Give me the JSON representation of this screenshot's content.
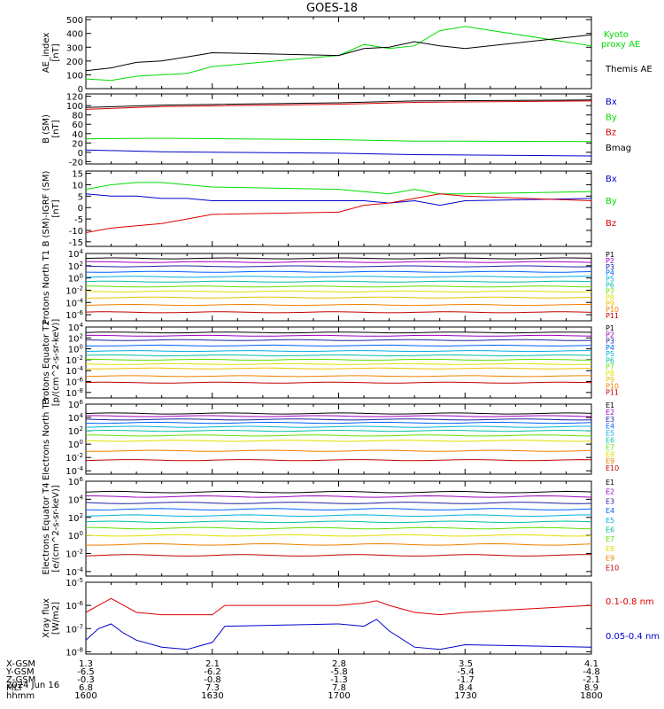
{
  "title": "GOES-18",
  "date_label": "2024 Jun 16",
  "bottom_axis": {
    "ticks": [
      "1600",
      "1630",
      "1700",
      "1730",
      "1800"
    ],
    "rows": [
      {
        "label": "X-GSM",
        "values": [
          "1.3",
          "2.1",
          "2.8",
          "3.5",
          "4.1"
        ]
      },
      {
        "label": "Y-GSM",
        "values": [
          "-6.5",
          "-6.2",
          "-5.8",
          "-5.4",
          "-4.8"
        ]
      },
      {
        "label": "Z-GSM",
        "values": [
          "-0.3",
          "-0.8",
          "-1.3",
          "-1.7",
          "-2.1"
        ]
      },
      {
        "label": "MLT",
        "values": [
          "6.8",
          "7.3",
          "7.8",
          "8.4",
          "8.9"
        ]
      },
      {
        "label": "hhmm",
        "values": [
          "1600",
          "1630",
          "1700",
          "1730",
          "1800"
        ]
      }
    ]
  },
  "colors": {
    "black": "#000000",
    "green": "#00dd00",
    "blue": "#0000cc",
    "red": "#dd0000",
    "purple": "#a000c0",
    "navy": "#2020a0",
    "blue2": "#0060ff",
    "cyan": "#00b0e0",
    "teal": "#00c0a0",
    "lime": "#60e000",
    "yellow": "#e0e000",
    "gold": "#f0c000",
    "orange": "#f08000",
    "darkred": "#c00000"
  },
  "chart_data": [
    {
      "type": "line",
      "ylabel": "AE_index [nT]",
      "yticks": [
        "500",
        "400",
        "300",
        "200",
        "100",
        "0"
      ],
      "ylim": [
        0,
        520
      ],
      "x": [
        1600,
        1610,
        1620,
        1630,
        1640,
        1650,
        1700,
        1710,
        1720,
        1730,
        1740,
        1750,
        1800
      ],
      "series": [
        {
          "name": "Kyoto proxy AE",
          "color": "green",
          "values": [
            70,
            60,
            90,
            100,
            110,
            160,
            240,
            320,
            290,
            310,
            420,
            450,
            310
          ]
        },
        {
          "name": "Themis AE",
          "color": "black",
          "values": [
            130,
            150,
            190,
            200,
            230,
            260,
            240,
            290,
            300,
            340,
            310,
            290,
            390
          ]
        }
      ],
      "legend": [
        "Kyoto",
        "proxy AE",
        "Themis AE"
      ]
    },
    {
      "type": "line",
      "ylabel": "B (SM) [nT]",
      "yticks": [
        "120",
        "100",
        "80",
        "60",
        "40",
        "20",
        "0",
        "-20"
      ],
      "ylim": [
        -25,
        125
      ],
      "x": [
        1600,
        1630,
        1700,
        1730,
        1800
      ],
      "series": [
        {
          "name": "Bx",
          "color": "blue",
          "values": [
            5,
            1,
            -2,
            -5,
            -8
          ]
        },
        {
          "name": "By",
          "color": "green",
          "values": [
            29,
            30,
            27,
            24,
            23
          ]
        },
        {
          "name": "Bz",
          "color": "red",
          "values": [
            92,
            98,
            103,
            107,
            110
          ]
        },
        {
          "name": "Bmag",
          "color": "black",
          "values": [
            96,
            101,
            106,
            110,
            112
          ]
        }
      ],
      "legend": [
        "Bx",
        "By",
        "Bz",
        "Bmag"
      ]
    },
    {
      "type": "line",
      "ylabel": "B (SM)-IGRF (SM) [nT]",
      "yticks": [
        "15",
        "10",
        "5",
        "0",
        "-5",
        "-10",
        "-15"
      ],
      "ylim": [
        -17,
        16
      ],
      "x": [
        1600,
        1610,
        1620,
        1630,
        1640,
        1650,
        1700,
        1710,
        1720,
        1730,
        1740,
        1750,
        1800
      ],
      "series": [
        {
          "name": "Bx",
          "color": "blue",
          "values": [
            6,
            5,
            5,
            4,
            4,
            3,
            3,
            3,
            2,
            3,
            1,
            3,
            4
          ]
        },
        {
          "name": "By",
          "color": "green",
          "values": [
            8,
            10,
            11,
            11,
            10,
            9,
            8,
            7,
            6,
            8,
            6,
            6,
            7
          ]
        },
        {
          "name": "Bz",
          "color": "red",
          "values": [
            -11,
            -9,
            -8,
            -7,
            -5,
            -3,
            -2,
            1,
            2,
            4,
            6,
            5,
            3
          ]
        }
      ],
      "legend": [
        "Bx",
        "By",
        "Bz"
      ]
    },
    {
      "type": "line",
      "ylabel": "Protons North T1",
      "yticks": [
        "10^4",
        "10^2",
        "10^0",
        "10^-2",
        "10^-4",
        "10^-6"
      ],
      "log": true,
      "ylim_exp": [
        -7,
        4
      ],
      "series_exp": [
        {
          "name": "P1",
          "color": "black",
          "value": 3.2
        },
        {
          "name": "P2",
          "color": "purple",
          "value": 2.6
        },
        {
          "name": "P3",
          "color": "navy",
          "value": 1.9
        },
        {
          "name": "P4",
          "color": "blue2",
          "value": 1.0
        },
        {
          "name": "P5",
          "color": "cyan",
          "value": 0.2
        },
        {
          "name": "P6",
          "color": "teal",
          "value": -0.6
        },
        {
          "name": "P7",
          "color": "lime",
          "value": -1.4
        },
        {
          "name": "P8",
          "color": "yellow",
          "value": -2.2
        },
        {
          "name": "P9",
          "color": "gold",
          "value": -3.2
        },
        {
          "name": "P10",
          "color": "orange",
          "value": -4.4
        },
        {
          "name": "P11",
          "color": "darkred",
          "value": -5.6
        }
      ],
      "legend": [
        "P1",
        "P2",
        "P3",
        "P4",
        "P5",
        "P6",
        "P7",
        "P8",
        "P9",
        "P10",
        "P11"
      ]
    },
    {
      "type": "line",
      "ylabel": "Protons Equator T2 [p/(cm^2-s-sr-keV)]",
      "yticks": [
        "10^4",
        "10^2",
        "10^0",
        "10^-2",
        "10^-4",
        "10^-6",
        "10^-8"
      ],
      "log": true,
      "ylim_exp": [
        -9,
        4
      ],
      "series_exp": [
        {
          "name": "P1",
          "color": "black",
          "value": 3.0
        },
        {
          "name": "P2",
          "color": "purple",
          "value": 2.4
        },
        {
          "name": "P3",
          "color": "navy",
          "value": 1.6
        },
        {
          "name": "P4",
          "color": "blue2",
          "value": 0.6
        },
        {
          "name": "P5",
          "color": "cyan",
          "value": -0.4
        },
        {
          "name": "P6",
          "color": "teal",
          "value": -1.2
        },
        {
          "name": "P7",
          "color": "lime",
          "value": -2.0
        },
        {
          "name": "P8",
          "color": "yellow",
          "value": -2.8
        },
        {
          "name": "P9",
          "color": "gold",
          "value": -3.6
        },
        {
          "name": "P10",
          "color": "orange",
          "value": -5.0
        },
        {
          "name": "P11",
          "color": "darkred",
          "value": -6.2
        }
      ],
      "legend": [
        "P1",
        "P2",
        "P3",
        "P4",
        "P5",
        "P6",
        "P7",
        "P8",
        "P9",
        "P10",
        "P11"
      ]
    },
    {
      "type": "line",
      "ylabel": "Electrons North T3",
      "yticks": [
        "10^6",
        "10^4",
        "10^2",
        "10^0",
        "10^-2",
        "10^-4"
      ],
      "log": true,
      "ylim_exp": [
        -4.5,
        6
      ],
      "series_exp": [
        {
          "name": "E1",
          "color": "black",
          "value": 4.6
        },
        {
          "name": "E2",
          "color": "purple",
          "value": 4.2
        },
        {
          "name": "E3",
          "color": "navy",
          "value": 3.7
        },
        {
          "name": "E4",
          "color": "blue2",
          "value": 3.2
        },
        {
          "name": "E5",
          "color": "cyan",
          "value": 2.6
        },
        {
          "name": "E6",
          "color": "teal",
          "value": 2.0
        },
        {
          "name": "E7",
          "color": "lime",
          "value": 1.3
        },
        {
          "name": "E8",
          "color": "yellow",
          "value": 0.5
        },
        {
          "name": "E9",
          "color": "orange",
          "value": -1.0
        },
        {
          "name": "E10",
          "color": "darkred",
          "value": -2.4
        }
      ],
      "legend": [
        "E1",
        "E2",
        "E3",
        "E4",
        "E5",
        "E6",
        "E7",
        "E8",
        "E9",
        "E10"
      ]
    },
    {
      "type": "line",
      "ylabel": "Electrons Equator T4 [e/(cm^2-s-sr-keV)]",
      "yticks": [
        "10^6",
        "10^4",
        "10^2",
        "10^0",
        "10^-2",
        "10^-4"
      ],
      "log": true,
      "ylim_exp": [
        -4.5,
        6
      ],
      "series_exp": [
        {
          "name": "E1",
          "color": "black",
          "value": 4.8
        },
        {
          "name": "E2",
          "color": "purple",
          "value": 4.3
        },
        {
          "name": "E3",
          "color": "navy",
          "value": 3.6
        },
        {
          "name": "E4",
          "color": "blue2",
          "value": 2.9
        },
        {
          "name": "E5",
          "color": "cyan",
          "value": 2.2
        },
        {
          "name": "E6",
          "color": "teal",
          "value": 1.5
        },
        {
          "name": "E7",
          "color": "lime",
          "value": 0.8
        },
        {
          "name": "E8",
          "color": "yellow",
          "value": 0.0
        },
        {
          "name": "E9",
          "color": "orange",
          "value": -1.0
        },
        {
          "name": "E10",
          "color": "darkred",
          "value": -2.2
        }
      ],
      "legend": [
        "E1",
        "E2",
        "E3",
        "E4",
        "E5",
        "E6",
        "E7",
        "E8",
        "E9",
        "E10"
      ]
    },
    {
      "type": "line",
      "ylabel": "Xray flux [W/m2]",
      "yticks": [
        "10^-5",
        "10^-6",
        "10^-7",
        "10^-8"
      ],
      "log": true,
      "ylim_exp": [
        -8.1,
        -5
      ],
      "x": [
        1600,
        1605,
        1610,
        1615,
        1620,
        1630,
        1640,
        1650,
        1655,
        1700,
        1710,
        1715,
        1720,
        1730,
        1740,
        1750,
        1800
      ],
      "series": [
        {
          "name": "0.1-0.8 nm",
          "color": "red",
          "values": [
            -6.3,
            -6.0,
            -5.7,
            -6.0,
            -6.3,
            -6.4,
            -6.4,
            -6.4,
            -6.0,
            -6.0,
            -5.9,
            -5.8,
            -6.0,
            -6.3,
            -6.4,
            -6.3,
            -6.0
          ]
        },
        {
          "name": "0.05-0.4 nm",
          "color": "blue",
          "values": [
            -7.5,
            -7.0,
            -6.8,
            -7.2,
            -7.5,
            -7.8,
            -7.9,
            -7.6,
            -6.9,
            -6.8,
            -6.9,
            -6.6,
            -7.1,
            -7.8,
            -7.9,
            -7.7,
            -7.8
          ]
        }
      ],
      "legend": [
        "0.1-0.8 nm",
        "0.05-0.4 nm"
      ]
    }
  ]
}
